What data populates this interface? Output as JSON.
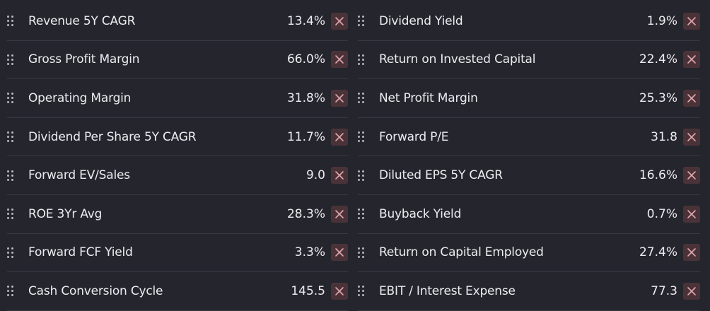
{
  "colors": {
    "background": "#25252d",
    "divider": "#393943",
    "remove_button_bg": "#4a3338",
    "remove_icon": "#e0a6ad"
  },
  "metrics": {
    "left": [
      {
        "label": "Revenue 5Y CAGR",
        "value": "13.4%"
      },
      {
        "label": "Gross Profit Margin",
        "value": "66.0%"
      },
      {
        "label": "Operating Margin",
        "value": "31.8%"
      },
      {
        "label": "Dividend Per Share 5Y CAGR",
        "value": "11.7%"
      },
      {
        "label": "Forward EV/Sales",
        "value": "9.0"
      },
      {
        "label": "ROE 3Yr Avg",
        "value": "28.3%"
      },
      {
        "label": "Forward FCF Yield",
        "value": "3.3%"
      },
      {
        "label": "Cash Conversion Cycle",
        "value": "145.5"
      }
    ],
    "right": [
      {
        "label": "Dividend Yield",
        "value": "1.9%"
      },
      {
        "label": "Return on Invested Capital",
        "value": "22.4%"
      },
      {
        "label": "Net Profit Margin",
        "value": "25.3%"
      },
      {
        "label": "Forward P/E",
        "value": "31.8"
      },
      {
        "label": "Diluted EPS 5Y CAGR",
        "value": "16.6%"
      },
      {
        "label": "Buyback Yield",
        "value": "0.7%"
      },
      {
        "label": "Return on Capital Employed",
        "value": "27.4%"
      },
      {
        "label": "EBIT / Interest Expense",
        "value": "77.3"
      }
    ]
  },
  "icons": {
    "handle": "drag-handle-icon",
    "remove": "close-icon"
  }
}
